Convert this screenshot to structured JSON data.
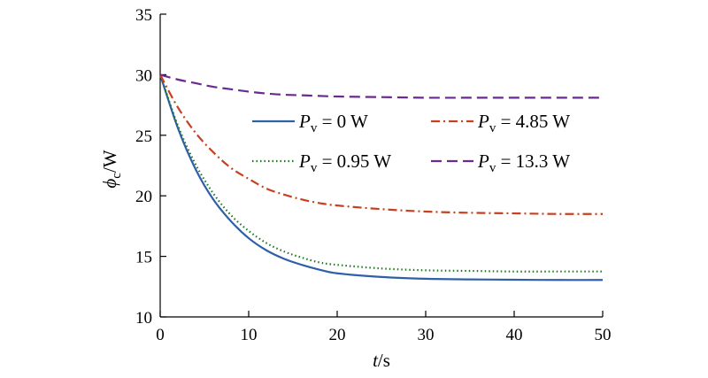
{
  "chart_data": {
    "type": "line",
    "xlabel": {
      "main": "t",
      "unit": "/s"
    },
    "ylabel": {
      "main": "ϕ",
      "sub": "c",
      "unit": "/W"
    },
    "xlim": [
      0,
      50
    ],
    "ylim": [
      10,
      35
    ],
    "xticks": [
      0,
      10,
      20,
      30,
      40,
      50
    ],
    "yticks": [
      10,
      15,
      20,
      25,
      30,
      35
    ],
    "grid": false,
    "legend_position": "center-right",
    "series": [
      {
        "name": "P_v = 0 W",
        "label_main": "P",
        "label_sub": "v",
        "label_rest": " = 0 W",
        "color": "#2e5fa8",
        "dash": "solid",
        "x": [
          0,
          2,
          4,
          6,
          8,
          10,
          12,
          14,
          16,
          18,
          20,
          25,
          30,
          35,
          40,
          45,
          50
        ],
        "y": [
          30,
          25.6,
          22.2,
          19.7,
          17.9,
          16.5,
          15.5,
          14.8,
          14.3,
          13.9,
          13.6,
          13.3,
          13.15,
          13.1,
          13.07,
          13.05,
          13.05
        ]
      },
      {
        "name": "P_v = 0.95 W",
        "label_main": "P",
        "label_sub": "v",
        "label_rest": " = 0.95 W",
        "color": "#1f7a1f",
        "dash": "dotted",
        "x": [
          0,
          2,
          4,
          6,
          8,
          10,
          12,
          14,
          16,
          18,
          20,
          25,
          30,
          35,
          40,
          45,
          50
        ],
        "y": [
          30,
          25.8,
          22.6,
          20.2,
          18.4,
          17.1,
          16.1,
          15.4,
          14.9,
          14.5,
          14.3,
          14.0,
          13.85,
          13.8,
          13.75,
          13.75,
          13.75
        ]
      },
      {
        "name": "P_v = 4.85 W",
        "label_main": "P",
        "label_sub": "v",
        "label_rest": " = 4.85 W",
        "color": "#c8401f",
        "dash": "dashdot",
        "x": [
          0,
          2,
          4,
          6,
          8,
          10,
          12,
          14,
          16,
          18,
          20,
          25,
          30,
          35,
          40,
          45,
          50
        ],
        "y": [
          30,
          27.3,
          25.2,
          23.6,
          22.3,
          21.4,
          20.6,
          20.1,
          19.7,
          19.4,
          19.2,
          18.9,
          18.7,
          18.6,
          18.55,
          18.5,
          18.5
        ]
      },
      {
        "name": "P_v = 13.3 W",
        "label_main": "P",
        "label_sub": "v",
        "label_rest": " = 13.3 W",
        "color": "#6a2a8f",
        "dash": "dashed",
        "x": [
          0,
          2,
          4,
          6,
          8,
          10,
          12,
          14,
          16,
          18,
          20,
          25,
          30,
          35,
          40,
          45,
          50
        ],
        "y": [
          30,
          29.6,
          29.3,
          29.0,
          28.8,
          28.6,
          28.45,
          28.35,
          28.3,
          28.25,
          28.2,
          28.15,
          28.1,
          28.1,
          28.1,
          28.1,
          28.1
        ]
      }
    ]
  }
}
